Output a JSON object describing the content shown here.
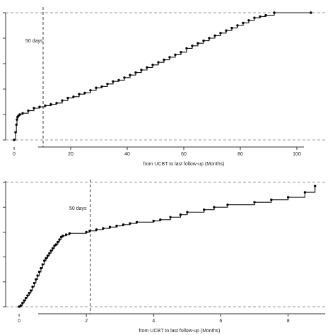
{
  "chart_data": [
    {
      "type": "line",
      "xlabel": "from UCBT to last follow-up (Months)",
      "ylabel": "",
      "xlim": [
        -3,
        110
      ],
      "ylim": [
        0,
        1
      ],
      "x_ticks": [
        0,
        20,
        40,
        60,
        80,
        100
      ],
      "x_tick_labels": [
        "0",
        "20",
        "40",
        "60",
        "80",
        "100"
      ],
      "y_ticks": [
        0,
        0.2,
        0.4,
        0.6,
        0.8,
        1.0
      ],
      "grid": false,
      "legend": "none",
      "annotation": {
        "text": "50 days",
        "x": 1.64
      },
      "series": [
        {
          "name": "",
          "x": [
            0,
            0.5,
            0.8,
            1.0,
            1.2,
            1.5,
            2,
            3,
            5,
            7,
            9,
            11,
            13,
            15,
            17,
            19,
            21,
            23,
            25,
            27,
            29,
            31,
            33,
            35,
            37,
            39,
            41,
            43,
            45,
            47,
            49,
            51,
            53,
            55,
            57,
            59,
            61,
            63,
            65,
            67,
            69,
            71,
            73,
            75,
            77,
            79,
            81,
            83,
            85,
            87,
            89,
            92,
            105
          ],
          "y": [
            0.0,
            0.06,
            0.12,
            0.16,
            0.18,
            0.19,
            0.2,
            0.21,
            0.23,
            0.25,
            0.26,
            0.27,
            0.28,
            0.29,
            0.31,
            0.33,
            0.34,
            0.36,
            0.37,
            0.39,
            0.41,
            0.42,
            0.44,
            0.46,
            0.47,
            0.49,
            0.51,
            0.53,
            0.55,
            0.57,
            0.59,
            0.61,
            0.63,
            0.65,
            0.67,
            0.69,
            0.72,
            0.74,
            0.76,
            0.78,
            0.8,
            0.82,
            0.84,
            0.86,
            0.88,
            0.9,
            0.92,
            0.94,
            0.96,
            0.97,
            0.98,
            1.0,
            1.0
          ]
        }
      ]
    },
    {
      "type": "line",
      "xlabel": "from UCBT to last follow-up (Months)",
      "ylabel": "",
      "xlim": [
        -0.4,
        9.1
      ],
      "ylim": [
        0,
        1
      ],
      "x_ticks": [
        0,
        2,
        4,
        6,
        8
      ],
      "x_tick_labels": [
        "0",
        "2",
        "4",
        "6",
        "8"
      ],
      "y_ticks": [
        0,
        0.2,
        0.4,
        0.6,
        0.8,
        1.0
      ],
      "grid": false,
      "legend": "none",
      "annotation": {
        "text": "50 days",
        "x": 1.64
      },
      "series": [
        {
          "name": "",
          "x": [
            0,
            0.05,
            0.1,
            0.15,
            0.2,
            0.25,
            0.3,
            0.35,
            0.4,
            0.45,
            0.5,
            0.55,
            0.6,
            0.65,
            0.7,
            0.75,
            0.8,
            0.85,
            0.9,
            0.95,
            1.0,
            1.05,
            1.1,
            1.15,
            1.2,
            1.25,
            1.3,
            1.4,
            1.5,
            2.0,
            2.1,
            2.3,
            2.5,
            2.7,
            2.9,
            3.1,
            3.3,
            3.5,
            4.0,
            4.2,
            4.5,
            4.8,
            5.0,
            5.5,
            5.8,
            6.2,
            7.0,
            7.5,
            8.0,
            8.5,
            8.8
          ],
          "y": [
            0.0,
            0.01,
            0.03,
            0.05,
            0.07,
            0.09,
            0.11,
            0.13,
            0.16,
            0.19,
            0.22,
            0.25,
            0.28,
            0.31,
            0.34,
            0.37,
            0.39,
            0.41,
            0.43,
            0.45,
            0.47,
            0.49,
            0.5,
            0.52,
            0.54,
            0.56,
            0.57,
            0.58,
            0.59,
            0.6,
            0.61,
            0.62,
            0.63,
            0.64,
            0.65,
            0.66,
            0.67,
            0.68,
            0.69,
            0.7,
            0.72,
            0.74,
            0.76,
            0.78,
            0.8,
            0.82,
            0.84,
            0.86,
            0.88,
            0.92,
            0.97
          ]
        }
      ]
    }
  ]
}
